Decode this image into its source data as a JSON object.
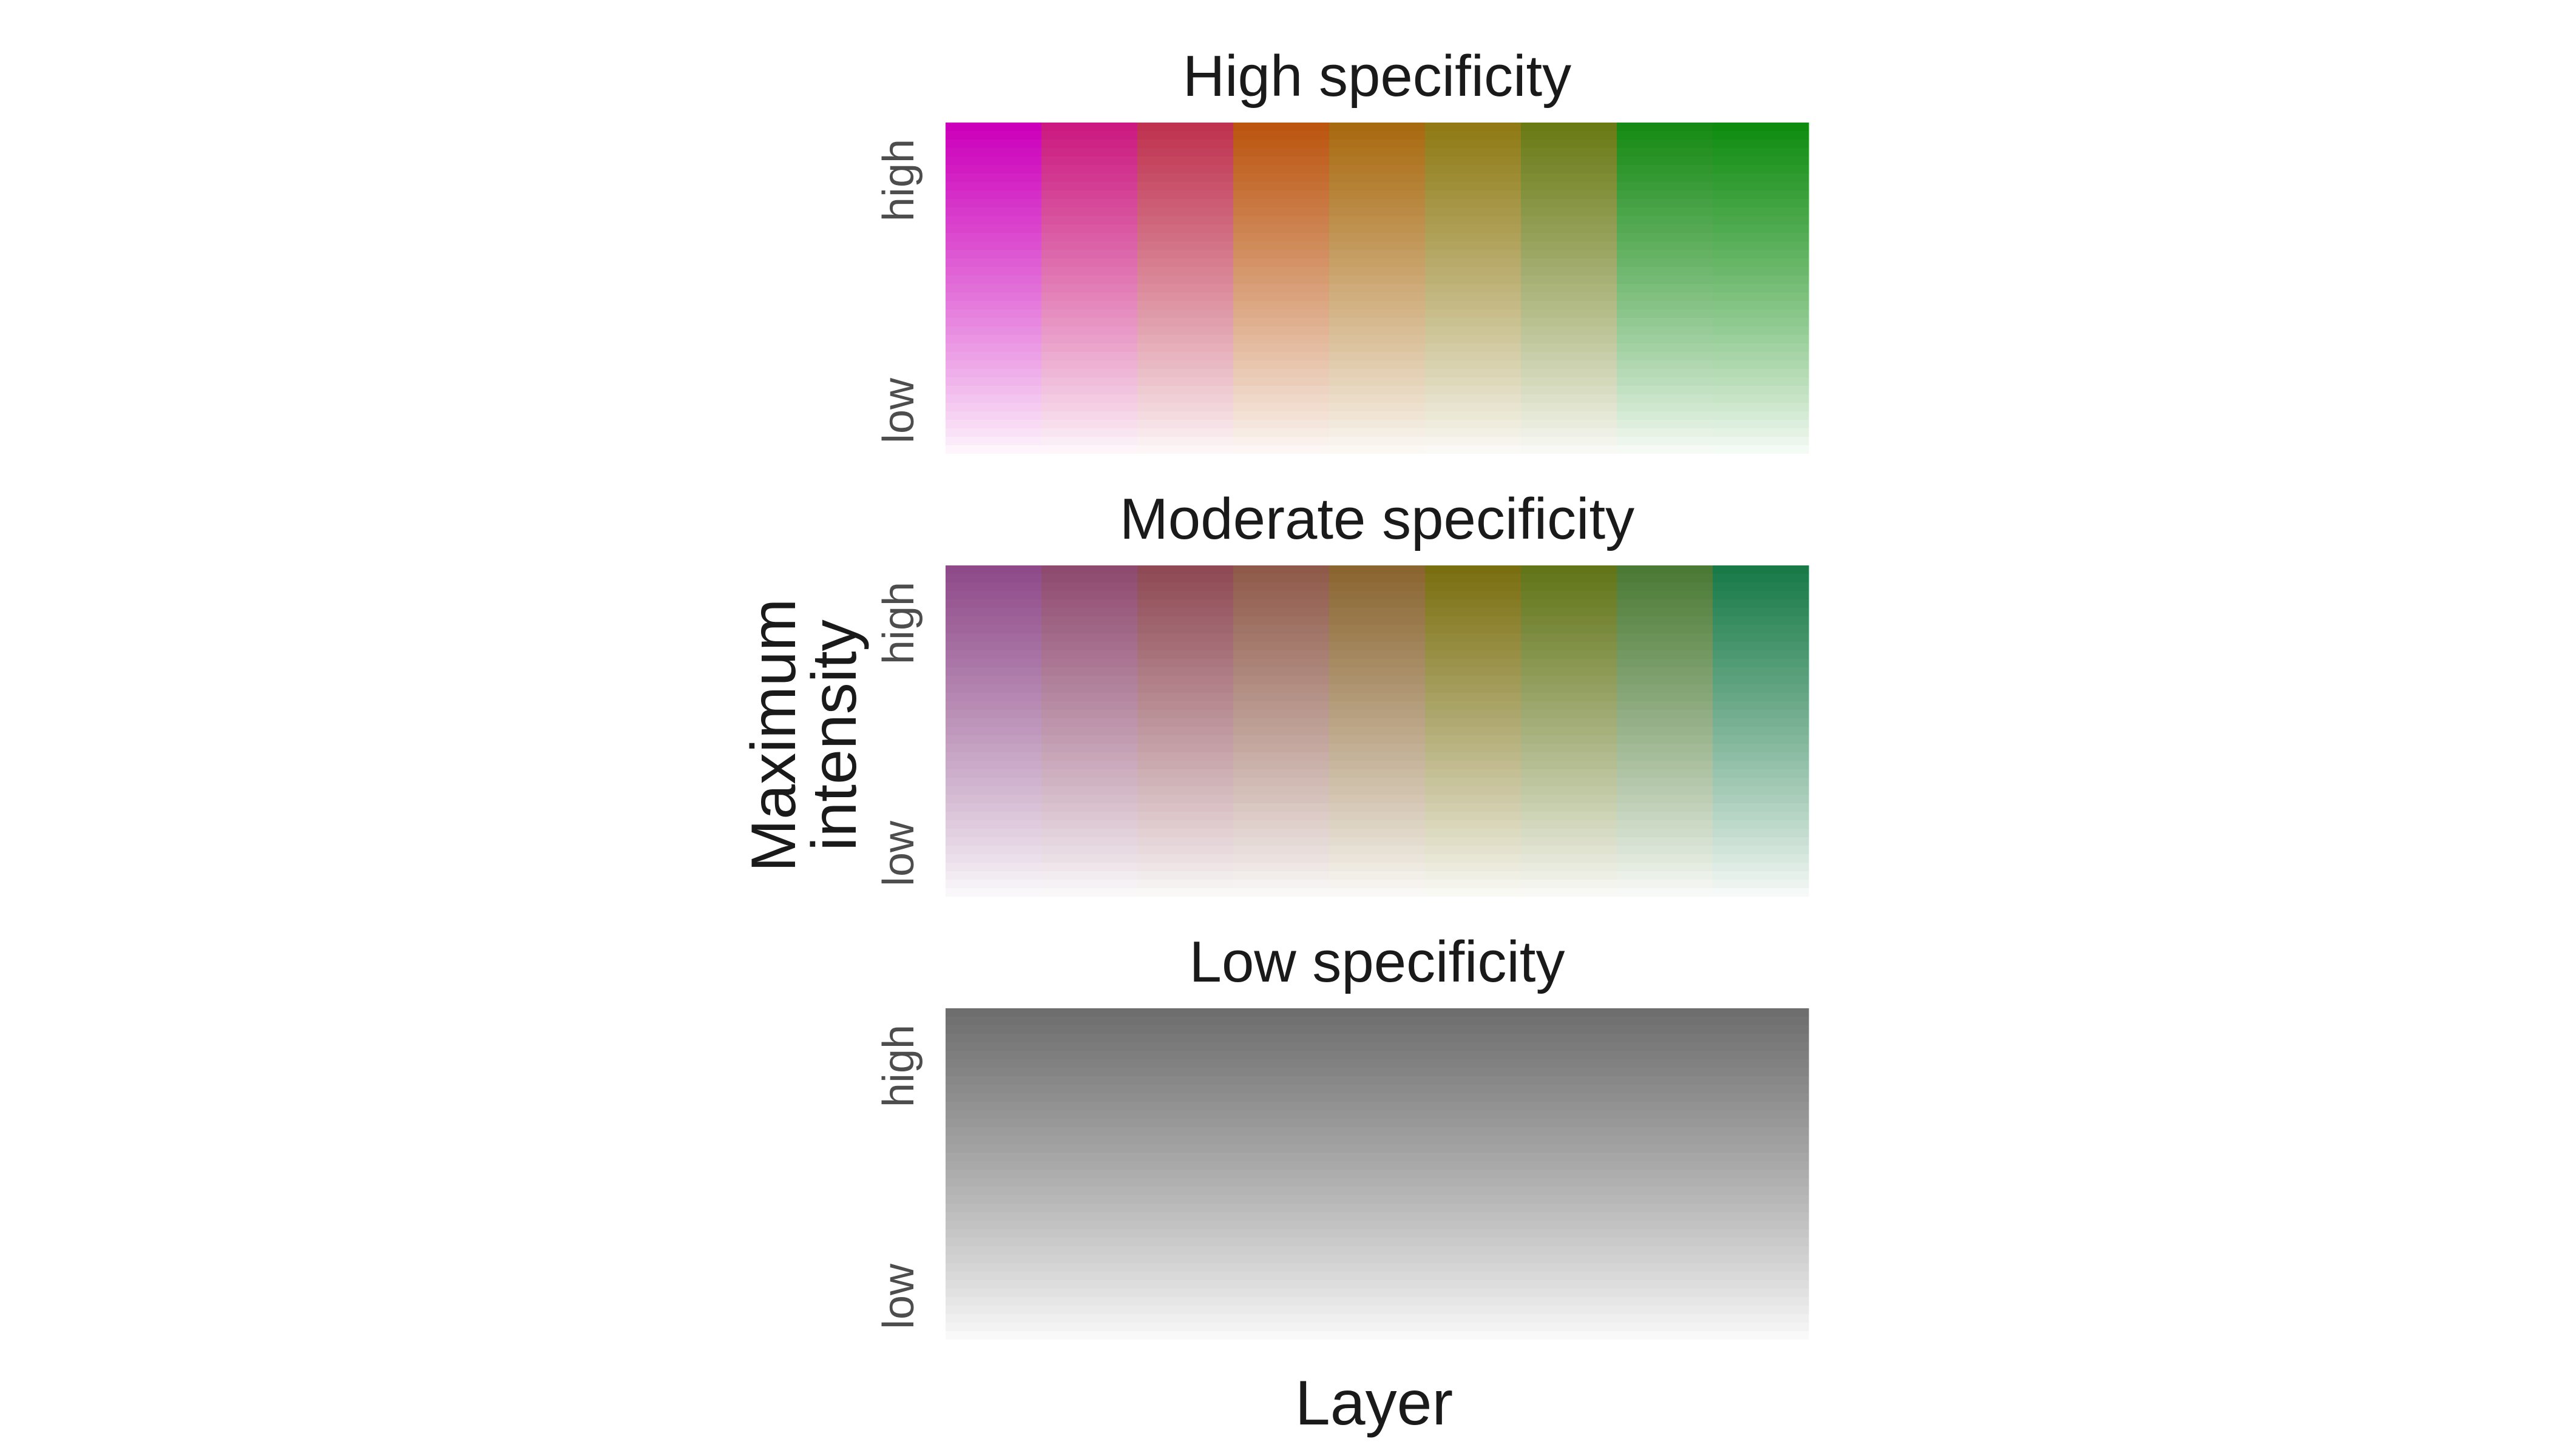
{
  "chart_data": {
    "type": "heatmap",
    "xlabel": "Layer",
    "ylabel": "Maximum\nintensity",
    "ytick_labels": [
      "high",
      "low"
    ],
    "columns": 9,
    "intensity_levels": 40,
    "grid": false,
    "legend": "none",
    "panels": [
      {
        "title": "High specificity",
        "layer_colors": [
          "#cc00bb",
          "#cc1a80",
          "#bf3350",
          "#bb5510",
          "#a86a10",
          "#8f7a15",
          "#6a7a15",
          "#168a14",
          "#0f8c10"
        ]
      },
      {
        "title": "Moderate specificity",
        "layer_colors": [
          "#8f4a8a",
          "#8f4a70",
          "#8f4a55",
          "#8f5a4a",
          "#8a6530",
          "#7a6f10",
          "#627518",
          "#4b7a35",
          "#197a48"
        ]
      },
      {
        "title": "Low specificity",
        "layer_colors": [
          "#6e6e6e",
          "#6e6e6e",
          "#6e6e6e",
          "#6e6e6e",
          "#6e6e6e",
          "#6e6e6e",
          "#6e6e6e",
          "#6e6e6e",
          "#6e6e6e"
        ]
      }
    ]
  }
}
